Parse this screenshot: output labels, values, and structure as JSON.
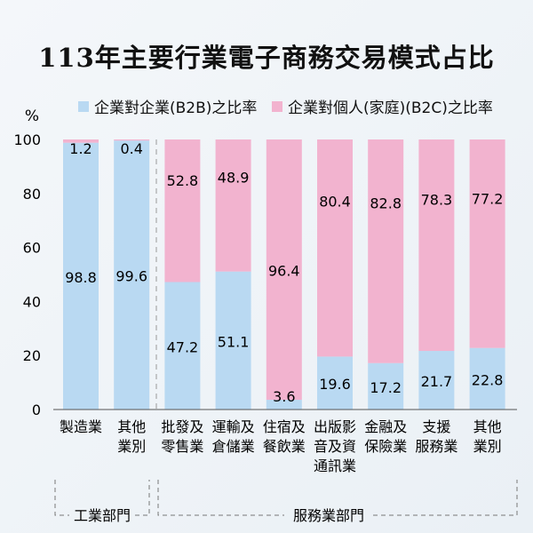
{
  "chart_data": {
    "type": "bar",
    "stacked": true,
    "title": "113年主要行業電子商務交易模式占比",
    "ylabel": "%",
    "ylim": [
      0,
      100
    ],
    "yticks": [
      0,
      20,
      40,
      60,
      80,
      100
    ],
    "grid": false,
    "legend_position": "top",
    "categories": [
      [
        "製造業"
      ],
      [
        "其他",
        "業別"
      ],
      [
        "批發及",
        "零售業"
      ],
      [
        "運輸及",
        "倉儲業"
      ],
      [
        "住宿及",
        "餐飲業"
      ],
      [
        "出版影",
        "音及資",
        "通訊業"
      ],
      [
        "金融及",
        "保險業"
      ],
      [
        "支援",
        "服務業"
      ],
      [
        "其他",
        "業別"
      ]
    ],
    "groups": [
      {
        "name": "工業部門",
        "members": [
          0,
          1
        ]
      },
      {
        "name": "服務業部門",
        "members": [
          2,
          3,
          4,
          5,
          6,
          7,
          8
        ]
      }
    ],
    "series": [
      {
        "name": "企業對企業(B2B)之比率",
        "color": "#b9d9f2",
        "values": [
          98.8,
          99.6,
          47.2,
          51.1,
          3.6,
          19.6,
          17.2,
          21.7,
          22.8
        ]
      },
      {
        "name": "企業對個人(家庭)(B2C)之比率",
        "color": "#f2b3cf",
        "values": [
          1.2,
          0.4,
          52.8,
          48.9,
          96.4,
          80.4,
          82.8,
          78.3,
          77.2
        ]
      }
    ]
  }
}
